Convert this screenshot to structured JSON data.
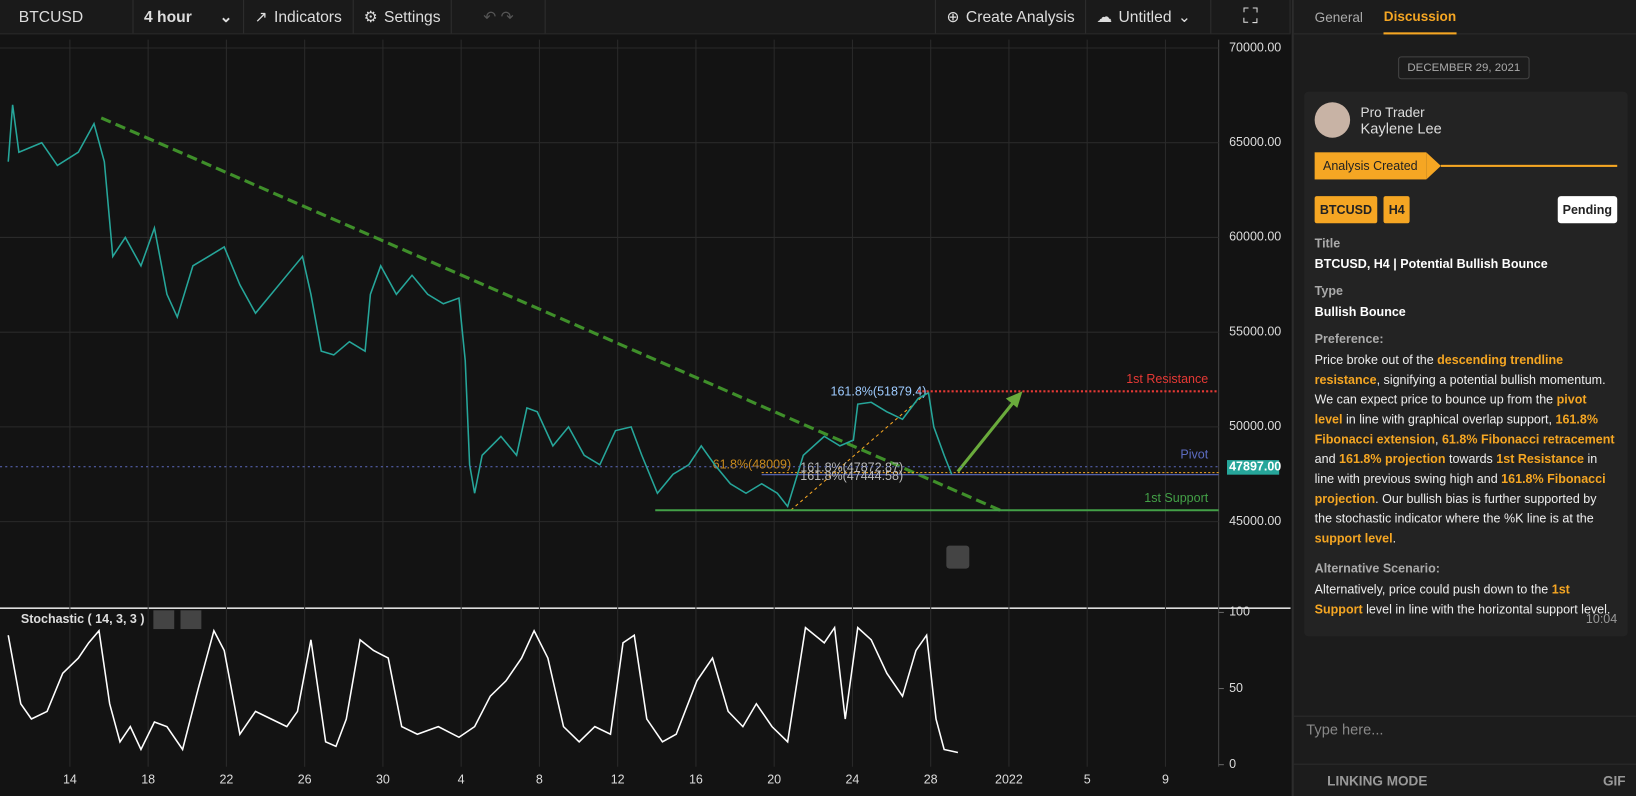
{
  "toolbar": {
    "symbol": "BTCUSD",
    "interval": "4 hour",
    "indicators": "Indicators",
    "settings": "Settings",
    "create": "Create Analysis",
    "layout": "Untitled"
  },
  "chart": {
    "xlim": [
      -3.573,
      58.72
    ],
    "xticks": [
      {
        "value": 0,
        "label": "14"
      },
      {
        "value": 4,
        "label": "18"
      },
      {
        "value": 8,
        "label": "22"
      },
      {
        "value": 12,
        "label": "26"
      },
      {
        "value": 16,
        "label": "30"
      },
      {
        "value": 20,
        "label": "4"
      },
      {
        "value": 24,
        "label": "8"
      },
      {
        "value": 28,
        "label": "12"
      },
      {
        "value": 32,
        "label": "16"
      },
      {
        "value": 36,
        "label": "20"
      },
      {
        "value": 40,
        "label": "24"
      },
      {
        "value": 44,
        "label": "28"
      },
      {
        "value": 48,
        "label": "2022"
      },
      {
        "value": 52,
        "label": "5"
      },
      {
        "value": 56,
        "label": "9"
      }
    ],
    "price": {
      "ylim": [
        40705,
        70440
      ],
      "yticks": [
        {
          "value": 45000,
          "label": "45000.00"
        },
        {
          "value": 50000,
          "label": "50000.00"
        },
        {
          "value": 55000,
          "label": "55000.00"
        },
        {
          "value": 60000,
          "label": "60000.00"
        },
        {
          "value": 65000,
          "label": "65000.00"
        },
        {
          "value": 70000,
          "label": "70000.00"
        }
      ],
      "color": "#26a69a",
      "x": [
        -3.15,
        -2.93,
        -2.61,
        -1.44,
        -0.64,
        0.43,
        1.23,
        1.76,
        2.19,
        2.83,
        3.63,
        4.32,
        4.96,
        5.49,
        6.29,
        7.09,
        7.89,
        8.69,
        9.49,
        10.29,
        11.09,
        11.89,
        12.32,
        12.85,
        13.49,
        14.29,
        15.09,
        15.36,
        15.89,
        16.69,
        17.49,
        18.29,
        19.09,
        19.89,
        20.21,
        20.43,
        20.69,
        21.07,
        22.03,
        22.83,
        23.36,
        23.89,
        24.69,
        25.49,
        26.29,
        27.09,
        27.89,
        28.69,
        29.23,
        30.03,
        30.83,
        31.63,
        32.27,
        32.96,
        33.76,
        34.56,
        35.36,
        36.16,
        36.69,
        37.49,
        38.56,
        39.36,
        40.05,
        40.27,
        40.96,
        41.76,
        42.56,
        43.36,
        43.89,
        44.16,
        44.69,
        45.07
      ],
      "values": [
        64000,
        67000,
        64500,
        65000,
        63800,
        64500,
        66000,
        64000,
        59000,
        60000,
        58500,
        60500,
        57000,
        55800,
        58500,
        59000,
        59500,
        57500,
        56000,
        57000,
        58000,
        59000,
        57000,
        54000,
        53800,
        54500,
        54000,
        57000,
        58500,
        57000,
        58000,
        57000,
        56500,
        56800,
        53500,
        48000,
        46500,
        48500,
        49500,
        48500,
        51000,
        50800,
        49000,
        50000,
        48500,
        48000,
        49800,
        50000,
        48500,
        46500,
        47500,
        48000,
        49000,
        48000,
        47000,
        46500,
        47000,
        46500,
        45800,
        48500,
        49500,
        49000,
        49300,
        51200,
        51300,
        50800,
        50400,
        51500,
        51800,
        50000,
        48500,
        47500
      ]
    },
    "levels": [
      {
        "label": "1st Resistance",
        "value": 51879.4,
        "color": "#e53935"
      },
      {
        "label": "Pivot",
        "value": 47897,
        "color": "#5c6bc0"
      },
      {
        "label": "1st Support",
        "value": 45600,
        "color": "#43a047"
      }
    ],
    "price_tag": "47897.00",
    "fib_labels": [
      "161.8%(51879.4)",
      "61.8%(48009)",
      "161.8%(47872.87)",
      "161.8%(47444.58)"
    ],
    "stoch": {
      "title": "Stochastic ( 14, 3, 3 )",
      "ylim": [
        -1.4,
        101.4
      ],
      "yticks": [
        0,
        50,
        100
      ],
      "color": "#ffffff",
      "x": [
        -3.15,
        -2.51,
        -1.97,
        -1.17,
        -0.37,
        0.43,
        0.96,
        1.49,
        2.03,
        2.56,
        3.09,
        3.63,
        4.32,
        4.96,
        5.76,
        6.56,
        7.36,
        7.89,
        8.69,
        9.49,
        10.29,
        11.09,
        11.63,
        12.32,
        13.07,
        13.6,
        14.13,
        14.83,
        15.52,
        16.27,
        16.96,
        17.76,
        18.83,
        19.89,
        20.69,
        21.49,
        22.29,
        23.09,
        23.73,
        24.43,
        25.23,
        26.03,
        26.83,
        27.63,
        28.27,
        28.85,
        29.49,
        30.29,
        30.99,
        32.05,
        32.85,
        33.65,
        34.4,
        35.09,
        35.89,
        36.69,
        37.6,
        38.56,
        39.09,
        39.63,
        40.27,
        40.96,
        41.76,
        42.56,
        43.25,
        43.79,
        44.27,
        44.69,
        45.39
      ],
      "values": [
        85,
        40,
        30,
        35,
        60,
        70,
        80,
        88,
        40,
        15,
        25,
        10,
        28,
        25,
        10,
        50,
        88,
        75,
        20,
        35,
        30,
        25,
        35,
        82,
        15,
        12,
        30,
        82,
        75,
        70,
        25,
        20,
        25,
        18,
        25,
        45,
        55,
        70,
        88,
        70,
        25,
        15,
        25,
        20,
        80,
        85,
        30,
        15,
        20,
        55,
        70,
        35,
        25,
        40,
        25,
        15,
        90,
        80,
        90,
        30,
        90,
        82,
        60,
        45,
        75,
        85,
        30,
        10,
        8
      ]
    }
  },
  "panel": {
    "tabs": [
      "General",
      "Discussion"
    ],
    "date": "DECEMBER 29, 2021",
    "role": "Pro Trader",
    "author": "Kaylene Lee",
    "event": "Analysis Created",
    "tags": [
      "BTCUSD",
      "H4"
    ],
    "status": "Pending",
    "fields": [
      {
        "label": "Title",
        "value": "BTCUSD, H4 | Potential Bullish Bounce"
      },
      {
        "label": "Type",
        "value": "Bullish Bounce"
      }
    ],
    "preference_label": "Preference:",
    "preference": [
      {
        "text": "Price broke out of the ",
        "highlight": false
      },
      {
        "text": "descending trendline resistance",
        "highlight": true
      },
      {
        "text": ", signifying a potential bullish momentum. We can expect price to bounce up from the ",
        "highlight": false
      },
      {
        "text": "pivot level",
        "highlight": true
      },
      {
        "text": " in line with graphical overlap support, ",
        "highlight": false
      },
      {
        "text": "161.8% Fibonacci extension",
        "highlight": true
      },
      {
        "text": ", ",
        "highlight": false
      },
      {
        "text": "61.8% Fibonacci retracement",
        "highlight": true
      },
      {
        "text": " and ",
        "highlight": false
      },
      {
        "text": "161.8% projection",
        "highlight": true
      },
      {
        "text": " towards ",
        "highlight": false
      },
      {
        "text": "1st Resistance",
        "highlight": true
      },
      {
        "text": " in line with previous swing high and ",
        "highlight": false
      },
      {
        "text": "161.8% Fibonacci projection",
        "highlight": true
      },
      {
        "text": ". Our bullish bias is further supported by the stochastic indicator where the %K line is at the ",
        "highlight": false
      },
      {
        "text": "support level",
        "highlight": true
      },
      {
        "text": ".",
        "highlight": false
      }
    ],
    "alternative_label": "Alternative Scenario:",
    "alternative": [
      {
        "text": "Alternatively, price could push down to the ",
        "highlight": false
      },
      {
        "text": "1st Support",
        "highlight": true
      },
      {
        "text": " level in line with the horizontal support level.",
        "highlight": false
      }
    ],
    "time": "10:04",
    "input_placeholder": "Type here...",
    "linking_mode": "LINKING MODE",
    "gif": "GIF"
  }
}
